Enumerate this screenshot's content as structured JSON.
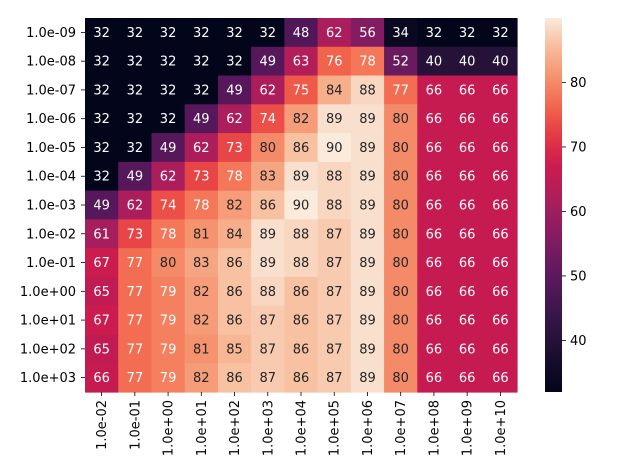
{
  "chart_data": {
    "type": "heatmap",
    "title": "",
    "xlabel": "",
    "ylabel": "",
    "x_labels": [
      "1.0e-02",
      "1.0e-01",
      "1.0e+00",
      "1.0e+01",
      "1.0e+02",
      "1.0e+03",
      "1.0e+04",
      "1.0e+05",
      "1.0e+06",
      "1.0e+07",
      "1.0e+08",
      "1.0e+09",
      "1.0e+10"
    ],
    "y_labels": [
      "1.0e-09",
      "1.0e-08",
      "1.0e-07",
      "1.0e-06",
      "1.0e-05",
      "1.0e-04",
      "1.0e-03",
      "1.0e-02",
      "1.0e-01",
      "1.0e+00",
      "1.0e+01",
      "1.0e+02",
      "1.0e+03"
    ],
    "values": [
      [
        32,
        32,
        32,
        32,
        32,
        32,
        48,
        62,
        56,
        34,
        32,
        32,
        32
      ],
      [
        32,
        32,
        32,
        32,
        32,
        49,
        63,
        76,
        78,
        52,
        40,
        40,
        40
      ],
      [
        32,
        32,
        32,
        32,
        49,
        62,
        75,
        84,
        88,
        77,
        66,
        66,
        66
      ],
      [
        32,
        32,
        32,
        49,
        62,
        74,
        82,
        89,
        89,
        80,
        66,
        66,
        66
      ],
      [
        32,
        32,
        49,
        62,
        73,
        80,
        86,
        90,
        89,
        80,
        66,
        66,
        66
      ],
      [
        32,
        49,
        62,
        73,
        78,
        83,
        89,
        88,
        89,
        80,
        66,
        66,
        66
      ],
      [
        49,
        62,
        74,
        78,
        82,
        86,
        90,
        88,
        89,
        80,
        66,
        66,
        66
      ],
      [
        61,
        73,
        78,
        81,
        84,
        89,
        88,
        87,
        89,
        80,
        66,
        66,
        66
      ],
      [
        67,
        77,
        80,
        83,
        86,
        89,
        88,
        87,
        89,
        80,
        66,
        66,
        66
      ],
      [
        65,
        77,
        79,
        82,
        86,
        88,
        86,
        87,
        89,
        80,
        66,
        66,
        66
      ],
      [
        67,
        77,
        79,
        82,
        86,
        87,
        86,
        87,
        89,
        80,
        66,
        66,
        66
      ],
      [
        65,
        77,
        79,
        81,
        85,
        87,
        86,
        87,
        89,
        80,
        66,
        66,
        66
      ],
      [
        66,
        77,
        79,
        82,
        86,
        87,
        86,
        87,
        89,
        80,
        66,
        66,
        66
      ]
    ],
    "colormap": "rocket",
    "vmin": 32,
    "vmax": 90,
    "colorbar_ticks": [
      40,
      50,
      60,
      70,
      80
    ],
    "annotated": true
  }
}
